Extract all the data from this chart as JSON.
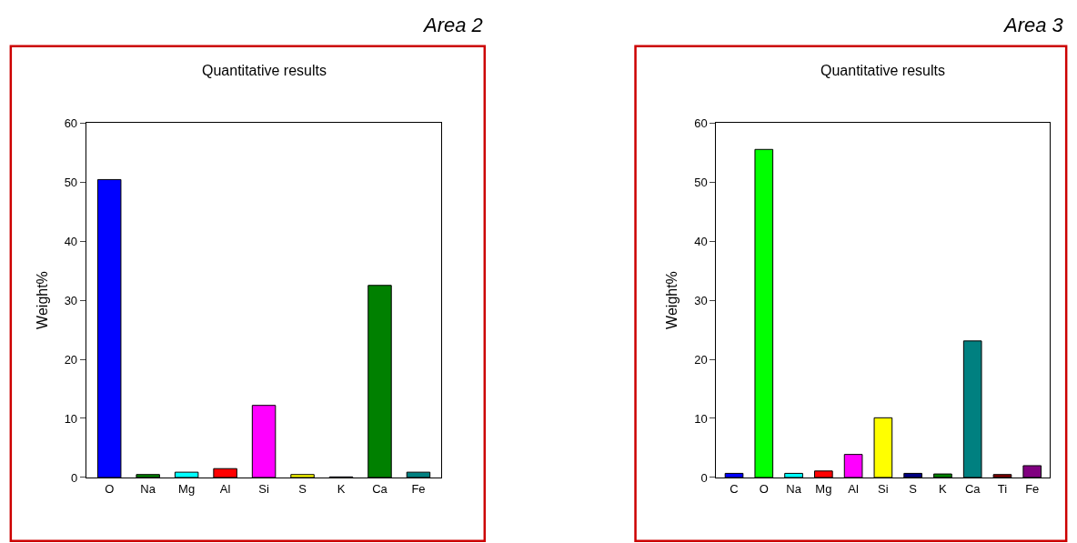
{
  "chart_data": [
    {
      "type": "bar",
      "title": "Quantitative results",
      "subtitle": "Area 2",
      "ylabel": "Weight%",
      "categories": [
        "O",
        "Na",
        "Mg",
        "Al",
        "Si",
        "S",
        "K",
        "Ca",
        "Fe"
      ],
      "values": [
        50.4,
        0.5,
        0.9,
        1.5,
        12.2,
        0.5,
        0.1,
        32.5,
        0.9
      ],
      "colors": [
        "#0000ff",
        "#008000",
        "#00ffff",
        "#ff0000",
        "#ff00ff",
        "#ffff00",
        "#000080",
        "#008000",
        "#008080"
      ],
      "ylim": [
        0,
        60
      ],
      "yticks": [
        0,
        10,
        20,
        30,
        40,
        50,
        60
      ]
    },
    {
      "type": "bar",
      "title": "Quantitative results",
      "subtitle": "Area 3",
      "ylabel": "Weight%",
      "categories": [
        "C",
        "O",
        "Na",
        "Mg",
        "Al",
        "Si",
        "S",
        "K",
        "Ca",
        "Ti",
        "Fe"
      ],
      "values": [
        0.7,
        55.5,
        0.7,
        1.1,
        3.9,
        10.1,
        0.7,
        0.6,
        23.1,
        0.5,
        2.0
      ],
      "colors": [
        "#0000ff",
        "#00ff00",
        "#00ffff",
        "#ff0000",
        "#ff00ff",
        "#ffff00",
        "#000080",
        "#008000",
        "#008080",
        "#800000",
        "#800080"
      ],
      "ylim": [
        0,
        60
      ],
      "yticks": [
        0,
        10,
        20,
        30,
        40,
        50,
        60
      ]
    }
  ]
}
